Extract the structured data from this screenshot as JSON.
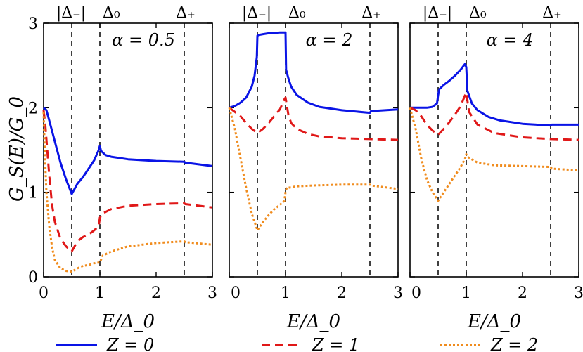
{
  "chart_data": {
    "type": "line",
    "y_axis_label": "G_S(E)/G_0",
    "x_axis_label": "E/Δ_0",
    "xlim": [
      0,
      3
    ],
    "ylim": [
      0,
      3
    ],
    "x_ticks": [
      "0",
      "1",
      "2",
      "3"
    ],
    "y_ticks": [
      "0",
      "1",
      "2",
      "3"
    ],
    "top_labels": [
      "|Δ₋|",
      "Δ₀",
      "Δ₊"
    ],
    "vlines": [
      0.5,
      1.0,
      2.5
    ],
    "legend": [
      {
        "label": "Z = 0",
        "color": "#0a14e6",
        "style": "solid"
      },
      {
        "label": "Z = 1",
        "color": "#e01818",
        "style": "dashed"
      },
      {
        "label": "Z = 2",
        "color": "#f08c1e",
        "style": "dotted"
      }
    ],
    "panels": [
      {
        "title": "α = 0.5",
        "series": [
          {
            "name": "Z = 0",
            "x": [
              0,
              0.05,
              0.1,
              0.2,
              0.3,
              0.4,
              0.5,
              0.6,
              0.7,
              0.8,
              0.9,
              0.98,
              1.0,
              1.02,
              1.1,
              1.2,
              1.5,
              2.0,
              2.5,
              2.52,
              3.0
            ],
            "y": [
              2.0,
              1.97,
              1.85,
              1.6,
              1.35,
              1.15,
              0.98,
              1.1,
              1.18,
              1.28,
              1.38,
              1.5,
              1.55,
              1.49,
              1.44,
              1.42,
              1.39,
              1.37,
              1.36,
              1.35,
              1.31
            ]
          },
          {
            "name": "Z = 1",
            "x": [
              0,
              0.03,
              0.1,
              0.15,
              0.2,
              0.3,
              0.4,
              0.5,
              0.6,
              0.7,
              0.8,
              0.9,
              0.98,
              1.0,
              1.05,
              1.2,
              1.5,
              2.0,
              2.5,
              2.52,
              3.0
            ],
            "y": [
              1.97,
              1.8,
              1.2,
              0.85,
              0.65,
              0.45,
              0.36,
              0.3,
              0.42,
              0.47,
              0.5,
              0.55,
              0.6,
              0.7,
              0.75,
              0.8,
              0.84,
              0.86,
              0.87,
              0.86,
              0.82
            ]
          },
          {
            "name": "Z = 2",
            "x": [
              0,
              0.02,
              0.05,
              0.1,
              0.15,
              0.2,
              0.3,
              0.4,
              0.5,
              0.6,
              0.7,
              0.8,
              0.9,
              1.0,
              1.05,
              1.2,
              1.5,
              2.0,
              2.5,
              2.52,
              3.0
            ],
            "y": [
              1.95,
              1.5,
              1.0,
              0.6,
              0.35,
              0.2,
              0.1,
              0.07,
              0.06,
              0.1,
              0.13,
              0.14,
              0.16,
              0.17,
              0.25,
              0.3,
              0.36,
              0.4,
              0.42,
              0.41,
              0.38
            ]
          }
        ]
      },
      {
        "title": "α = 2",
        "series": [
          {
            "name": "Z = 0",
            "x": [
              0,
              0.05,
              0.1,
              0.2,
              0.3,
              0.4,
              0.45,
              0.49,
              0.5,
              0.52,
              0.6,
              0.7,
              0.8,
              0.9,
              1.0,
              1.01,
              1.05,
              1.1,
              1.2,
              1.4,
              1.6,
              2.0,
              2.5,
              2.52,
              3.0
            ],
            "y": [
              2.0,
              2.01,
              2.02,
              2.06,
              2.12,
              2.25,
              2.38,
              2.6,
              2.85,
              2.86,
              2.87,
              2.88,
              2.88,
              2.89,
              2.89,
              2.45,
              2.35,
              2.25,
              2.15,
              2.06,
              2.01,
              1.97,
              1.94,
              1.96,
              1.98
            ]
          },
          {
            "name": "Z = 1",
            "x": [
              0,
              0.1,
              0.2,
              0.3,
              0.4,
              0.5,
              0.6,
              0.7,
              0.8,
              0.9,
              0.98,
              1.0,
              1.05,
              1.1,
              1.2,
              1.4,
              1.6,
              2.0,
              2.5,
              3.0
            ],
            "y": [
              2.0,
              1.95,
              1.9,
              1.82,
              1.75,
              1.7,
              1.75,
              1.82,
              1.9,
              1.98,
              2.1,
              2.12,
              1.92,
              1.82,
              1.75,
              1.69,
              1.66,
              1.64,
              1.63,
              1.62
            ]
          },
          {
            "name": "Z = 2",
            "x": [
              0,
              0.1,
              0.2,
              0.3,
              0.4,
              0.5,
              0.6,
              0.7,
              0.8,
              0.9,
              0.98,
              1.0,
              1.02,
              1.2,
              1.5,
              2.0,
              2.5,
              2.52,
              3.0
            ],
            "y": [
              2.0,
              1.75,
              1.4,
              1.05,
              0.75,
              0.55,
              0.65,
              0.73,
              0.8,
              0.85,
              0.9,
              1.0,
              1.05,
              1.07,
              1.08,
              1.09,
              1.09,
              1.08,
              1.04
            ]
          }
        ]
      },
      {
        "title": "α = 4",
        "series": [
          {
            "name": "Z = 0",
            "x": [
              0,
              0.1,
              0.2,
              0.3,
              0.4,
              0.48,
              0.5,
              0.52,
              0.6,
              0.7,
              0.8,
              0.9,
              0.98,
              1.0,
              1.02,
              1.1,
              1.2,
              1.4,
              1.6,
              2.0,
              2.5,
              2.52,
              3.0
            ],
            "y": [
              2.0,
              2.0,
              2.0,
              2.0,
              2.01,
              2.05,
              2.15,
              2.22,
              2.27,
              2.32,
              2.38,
              2.45,
              2.52,
              2.48,
              2.2,
              2.05,
              1.97,
              1.89,
              1.85,
              1.81,
              1.79,
              1.8,
              1.8
            ]
          },
          {
            "name": "Z = 1",
            "x": [
              0,
              0.1,
              0.2,
              0.3,
              0.4,
              0.5,
              0.6,
              0.7,
              0.8,
              0.9,
              0.98,
              1.0,
              1.05,
              1.2,
              1.5,
              2.0,
              2.5,
              3.0
            ],
            "y": [
              2.0,
              1.97,
              1.9,
              1.8,
              1.73,
              1.68,
              1.75,
              1.83,
              1.92,
              2.02,
              2.15,
              2.18,
              1.95,
              1.8,
              1.7,
              1.65,
              1.63,
              1.62
            ]
          },
          {
            "name": "Z = 2",
            "x": [
              0,
              0.1,
              0.2,
              0.3,
              0.4,
              0.5,
              0.6,
              0.7,
              0.8,
              0.9,
              0.98,
              1.0,
              1.02,
              1.2,
              1.5,
              2.0,
              2.5,
              2.52,
              3.0
            ],
            "y": [
              2.0,
              1.75,
              1.4,
              1.15,
              1.0,
              0.9,
              1.0,
              1.1,
              1.2,
              1.3,
              1.4,
              1.45,
              1.42,
              1.35,
              1.32,
              1.31,
              1.3,
              1.28,
              1.26
            ]
          }
        ]
      }
    ]
  }
}
